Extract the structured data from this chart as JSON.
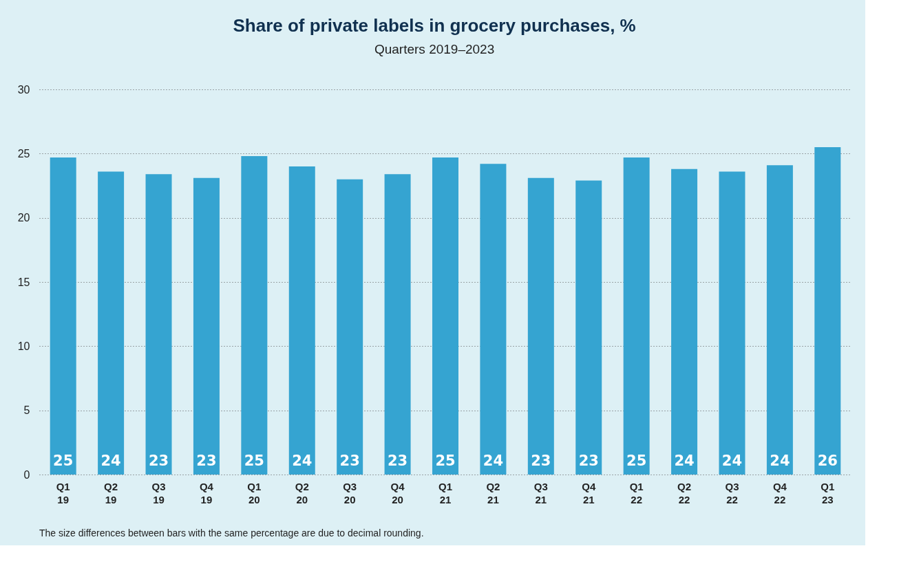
{
  "chart_data": {
    "type": "bar",
    "title": "Share of private labels in grocery purchases, %",
    "subtitle": "Quarters 2019–2023",
    "categories": [
      "Q1 19",
      "Q2 19",
      "Q3 19",
      "Q4 19",
      "Q1 20",
      "Q2 20",
      "Q3 20",
      "Q4 20",
      "Q1 21",
      "Q2 21",
      "Q3 21",
      "Q4 21",
      "Q1 22",
      "Q2 22",
      "Q3 22",
      "Q4 22",
      "Q1 23"
    ],
    "values": [
      24.7,
      23.6,
      23.4,
      23.1,
      24.8,
      24.0,
      23.0,
      23.4,
      24.7,
      24.2,
      23.1,
      22.9,
      24.7,
      23.8,
      23.6,
      24.1,
      25.5
    ],
    "value_labels": [
      "25",
      "24",
      "23",
      "23",
      "25",
      "24",
      "23",
      "23",
      "25",
      "24",
      "23",
      "23",
      "25",
      "24",
      "24",
      "24",
      "26"
    ],
    "color": "#35a4d1",
    "ylim": [
      0,
      30
    ],
    "yticks": [
      0,
      5,
      10,
      15,
      20,
      25,
      30
    ],
    "grid": "y",
    "annotations": [
      "The size differences between bars with the same percentage are due to decimal rounding."
    ]
  }
}
